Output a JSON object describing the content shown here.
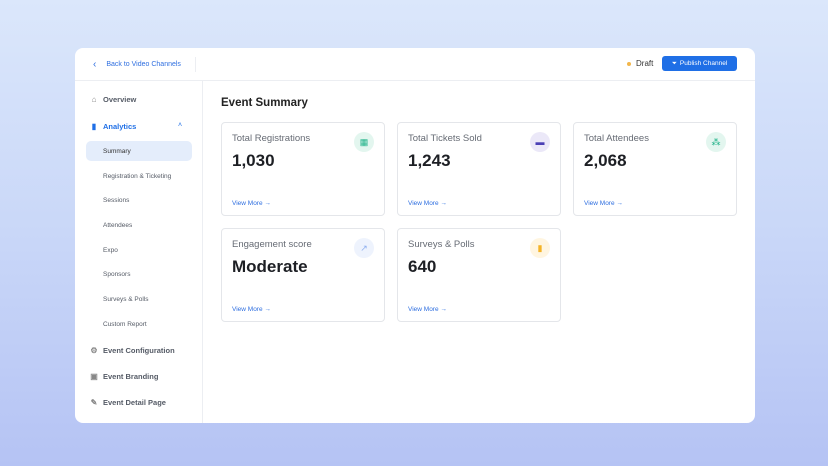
{
  "header": {
    "back_label": "Back to Video Channels",
    "status": "Draft",
    "status_color": "#f2b64b",
    "publish_label": "Publish Channel",
    "accent": "#1f6fe6"
  },
  "sidebar": {
    "items": [
      {
        "label": "Overview",
        "icon": "home-icon"
      },
      {
        "label": "Analytics",
        "icon": "bar-chart-icon"
      },
      {
        "label": "Event Configuration",
        "icon": "gear-icon"
      },
      {
        "label": "Event Branding",
        "icon": "image-icon"
      },
      {
        "label": "Event Detail Page",
        "icon": "pencil-icon"
      }
    ],
    "analytics_sub": [
      "Summary",
      "Registration & Ticketing",
      "Sessions",
      "Attendees",
      "Expo",
      "Sponsors",
      "Surveys & Polls",
      "Custom Report"
    ]
  },
  "main": {
    "title": "Event Summary",
    "view_more": "View More →",
    "cards": [
      {
        "label": "Total Registrations",
        "value": "1,030",
        "icon": "calendar-icon",
        "color": "#22b38a"
      },
      {
        "label": "Total Tickets Sold",
        "value": "1,243",
        "icon": "ticket-icon",
        "color": "#4a3fb5"
      },
      {
        "label": "Total Attendees",
        "value": "2,068",
        "icon": "users-icon",
        "color": "#22b38a"
      },
      {
        "label": "Engagement score",
        "value": "Moderate",
        "icon": "trend-icon",
        "color": "#8fb0f0"
      },
      {
        "label": "Surveys & Polls",
        "value": "640",
        "icon": "bar-chart-icon",
        "color": "#f5b325"
      }
    ]
  }
}
